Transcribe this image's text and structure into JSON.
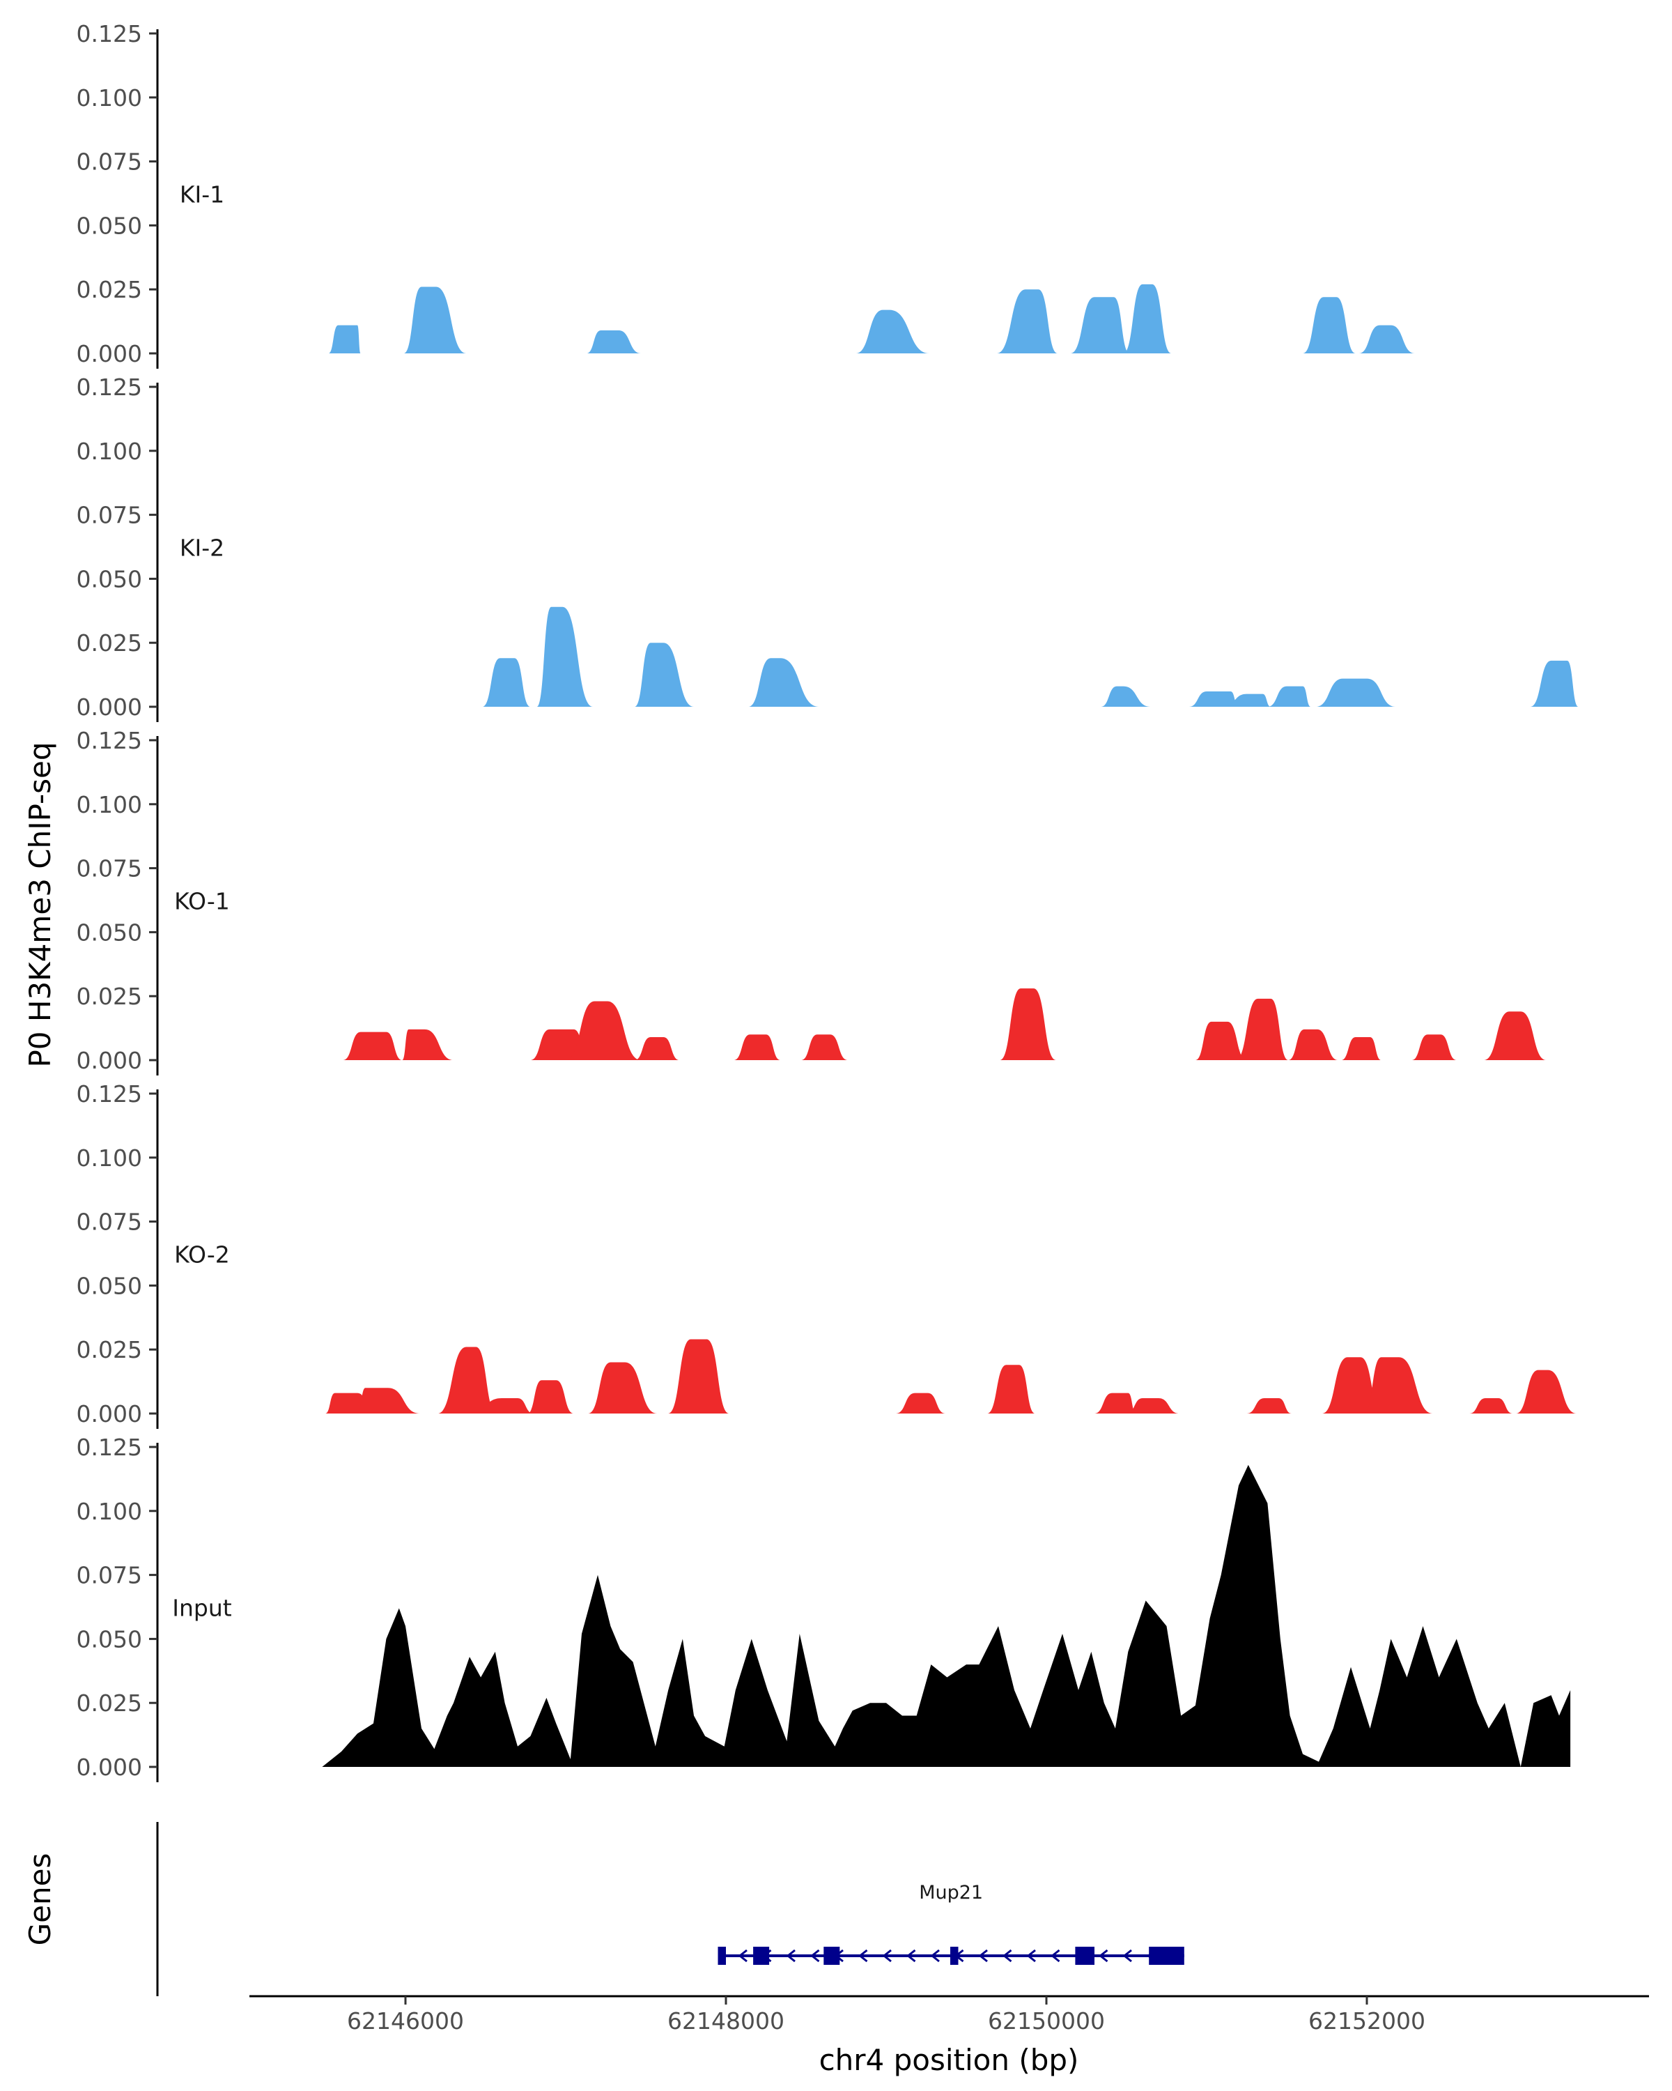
{
  "chart_data": {
    "type": "area",
    "ylabel": "P0 H3K4me3 ChIP-seq",
    "xlabel": "chr4 position (bp)",
    "ylim": [
      0,
      0.125
    ],
    "y_ticks": [
      "0.000",
      "0.025",
      "0.050",
      "0.075",
      "0.100",
      "0.125"
    ],
    "xlim": [
      62145000,
      62154000
    ],
    "x_ticks": [
      {
        "value": 62146000,
        "label": "62146000"
      },
      {
        "value": 62148000,
        "label": "62148000"
      },
      {
        "value": 62150000,
        "label": "62150000"
      },
      {
        "value": 62152000,
        "label": "62152000"
      }
    ],
    "tracks": [
      {
        "name": "KI-1",
        "color": "#5DADE9",
        "peaks": [
          [
            62145520,
            62145580,
            62145700,
            62145720,
            0.011
          ],
          [
            62145990,
            62146100,
            62146190,
            62146380,
            0.026
          ],
          [
            62147130,
            62147220,
            62147330,
            62147470,
            0.009
          ],
          [
            62148810,
            62148980,
            62149020,
            62149270,
            0.017
          ],
          [
            62149690,
            62149870,
            62149950,
            62150070,
            0.025
          ],
          [
            62150150,
            62150300,
            62150420,
            62150520,
            0.022
          ],
          [
            62150480,
            62150600,
            62150660,
            62150780,
            0.027
          ],
          [
            62151600,
            62151730,
            62151810,
            62151930,
            0.022
          ],
          [
            62151950,
            62152080,
            62152150,
            62152300,
            0.011
          ]
        ]
      },
      {
        "name": "KI-2",
        "color": "#5DADE9",
        "peaks": [
          [
            62146480,
            62146590,
            62146680,
            62146780,
            0.019
          ],
          [
            62146820,
            62146910,
            62146980,
            62147170,
            0.039
          ],
          [
            62147430,
            62147530,
            62147610,
            62147800,
            0.025
          ],
          [
            62148140,
            62148280,
            62148340,
            62148580,
            0.019
          ],
          [
            62150340,
            62150440,
            62150480,
            62150650,
            0.008
          ],
          [
            62150890,
            62151000,
            62151150,
            62151200,
            0.006
          ],
          [
            62151100,
            62151250,
            62151350,
            62151400,
            0.005
          ],
          [
            62151380,
            62151500,
            62151600,
            62151650,
            0.008
          ],
          [
            62151680,
            62151850,
            62152000,
            62152180,
            0.011
          ],
          [
            62153020,
            62153150,
            62153250,
            62153320,
            0.018
          ]
        ]
      },
      {
        "name": "KO-1",
        "color": "#EE2A2B",
        "peaks": [
          [
            62145610,
            62145720,
            62145880,
            62145980,
            0.011
          ],
          [
            62145980,
            62146020,
            62146120,
            62146300,
            0.012
          ],
          [
            62146780,
            62146900,
            62147050,
            62147150,
            0.012
          ],
          [
            62147000,
            62147180,
            62147260,
            62147470,
            0.023
          ],
          [
            62147430,
            62147530,
            62147610,
            62147710,
            0.009
          ],
          [
            62148050,
            62148150,
            62148250,
            62148340,
            0.01
          ],
          [
            62148470,
            62148570,
            62148650,
            62148760,
            0.01
          ],
          [
            62149710,
            62149840,
            62149920,
            62150060,
            0.028
          ],
          [
            62150930,
            62151030,
            62151130,
            62151250,
            0.015
          ],
          [
            62151180,
            62151320,
            62151400,
            62151510,
            0.024
          ],
          [
            62151510,
            62151610,
            62151690,
            62151820,
            0.012
          ],
          [
            62151840,
            62151930,
            62152020,
            62152090,
            0.009
          ],
          [
            62152280,
            62152380,
            62152460,
            62152560,
            0.01
          ],
          [
            62152730,
            62152890,
            62152960,
            62153120,
            0.019
          ]
        ]
      },
      {
        "name": "KO-2",
        "color": "#EE2A2B",
        "peaks": [
          [
            62145500,
            62145560,
            62145700,
            62145810,
            0.008
          ],
          [
            62145700,
            62145750,
            62145890,
            62146090,
            0.01
          ],
          [
            62146200,
            62146380,
            62146440,
            62146570,
            0.026
          ],
          [
            62146400,
            62146600,
            62146700,
            62146800,
            0.006
          ],
          [
            62146760,
            62146850,
            62146940,
            62147050,
            0.013
          ],
          [
            62147140,
            62147280,
            62147370,
            62147570,
            0.02
          ],
          [
            62147640,
            62147780,
            62147880,
            62148020,
            0.029
          ],
          [
            62149060,
            62149180,
            62149260,
            62149370,
            0.008
          ],
          [
            62149630,
            62149750,
            62149830,
            62149930,
            0.019
          ],
          [
            62150300,
            62150410,
            62150510,
            62150560,
            0.008
          ],
          [
            62150500,
            62150600,
            62150700,
            62150830,
            0.006
          ],
          [
            62151250,
            62151360,
            62151450,
            62151530,
            0.006
          ],
          [
            62151720,
            62151880,
            62151960,
            62152100,
            0.022
          ],
          [
            62151980,
            62152090,
            62152200,
            62152410,
            0.022
          ],
          [
            62152640,
            62152740,
            62152820,
            62152910,
            0.006
          ],
          [
            62152930,
            62153070,
            62153130,
            62153310,
            0.017
          ]
        ]
      },
      {
        "name": "Input",
        "color": "#000000",
        "x": [
          62145480,
          62145600,
          62145700,
          62145800,
          62145880,
          62145960,
          62146000,
          62146100,
          62146180,
          62146260,
          62146300,
          62146400,
          62146470,
          62146560,
          62146620,
          62146700,
          62146780,
          62146880,
          62146940,
          62147030,
          62147100,
          62147200,
          62147280,
          62147340,
          62147420,
          62147560,
          62147640,
          62147730,
          62147800,
          62147870,
          62147990,
          62148060,
          62148160,
          62148260,
          62148380,
          62148460,
          62148580,
          62148680,
          62148730,
          62148790,
          62148900,
          62149000,
          62149100,
          62149190,
          62149280,
          62149380,
          62149500,
          62149580,
          62149700,
          62149800,
          62149900,
          62149980,
          62150100,
          62150200,
          62150280,
          62150360,
          62150430,
          62150510,
          62150620,
          62150750,
          62150840,
          62150930,
          62151020,
          62151090,
          62151200,
          62151260,
          62151380,
          62151460,
          62151520,
          62151600,
          62151700,
          62151790,
          62151900,
          62152020,
          62152080,
          62152150,
          62152250,
          62152350,
          62152450,
          62152560,
          62152690,
          62152760,
          62152860,
          62152960,
          62153040,
          62153150,
          62153200,
          62153270
        ],
        "y": [
          0.0,
          0.006,
          0.013,
          0.017,
          0.05,
          0.062,
          0.055,
          0.015,
          0.007,
          0.02,
          0.025,
          0.043,
          0.035,
          0.045,
          0.025,
          0.008,
          0.012,
          0.027,
          0.017,
          0.003,
          0.052,
          0.075,
          0.055,
          0.046,
          0.041,
          0.008,
          0.03,
          0.05,
          0.02,
          0.012,
          0.008,
          0.03,
          0.05,
          0.03,
          0.01,
          0.052,
          0.018,
          0.008,
          0.015,
          0.022,
          0.025,
          0.025,
          0.02,
          0.02,
          0.04,
          0.035,
          0.04,
          0.04,
          0.055,
          0.03,
          0.015,
          0.03,
          0.052,
          0.03,
          0.045,
          0.025,
          0.015,
          0.045,
          0.065,
          0.055,
          0.02,
          0.024,
          0.058,
          0.075,
          0.11,
          0.118,
          0.103,
          0.05,
          0.02,
          0.005,
          0.002,
          0.015,
          0.039,
          0.015,
          0.03,
          0.05,
          0.035,
          0.055,
          0.035,
          0.05,
          0.025,
          0.015,
          0.025,
          0.0,
          0.025,
          0.028,
          0.02,
          0.03
        ]
      }
    ],
    "genes_label": "Genes",
    "gene": {
      "name": "Mup21",
      "start": 62147950,
      "end": 62150860,
      "strand": "-",
      "exons": [
        [
          62147950,
          62148000
        ],
        [
          62148170,
          62148270
        ],
        [
          62148610,
          62148710
        ],
        [
          62149400,
          62149450
        ],
        [
          62150180,
          62150300
        ],
        [
          62150640,
          62150860
        ]
      ]
    }
  }
}
